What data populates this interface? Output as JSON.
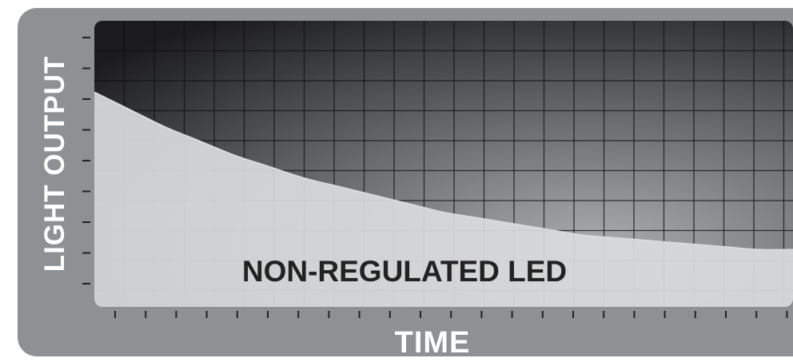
{
  "chart_data": {
    "type": "area",
    "title": "",
    "xlabel": "TIME",
    "ylabel": "LIGHT OUTPUT",
    "grid": true,
    "series": [
      {
        "name": "NON-REGULATED LED",
        "x": [
          0,
          0.05,
          0.1,
          0.15,
          0.2,
          0.25,
          0.3,
          0.35,
          0.4,
          0.45,
          0.5,
          0.55,
          0.6,
          0.65,
          0.7,
          0.75,
          0.8,
          0.85,
          0.9,
          0.95,
          1.0
        ],
        "values": [
          0.75,
          0.69,
          0.63,
          0.58,
          0.53,
          0.49,
          0.45,
          0.42,
          0.39,
          0.36,
          0.33,
          0.31,
          0.29,
          0.27,
          0.25,
          0.24,
          0.23,
          0.22,
          0.21,
          0.2,
          0.2
        ]
      }
    ],
    "xlim": [
      0,
      1
    ],
    "ylim": [
      0,
      1
    ],
    "colors": {
      "frame": "#8d9194",
      "plot_dark": "#1e1e20",
      "plot_light": "#a2a5a8",
      "fill": "#d9dadb",
      "grid": "#0f0f10",
      "axis_text": "#ffffff",
      "label_text": "#222222"
    }
  }
}
